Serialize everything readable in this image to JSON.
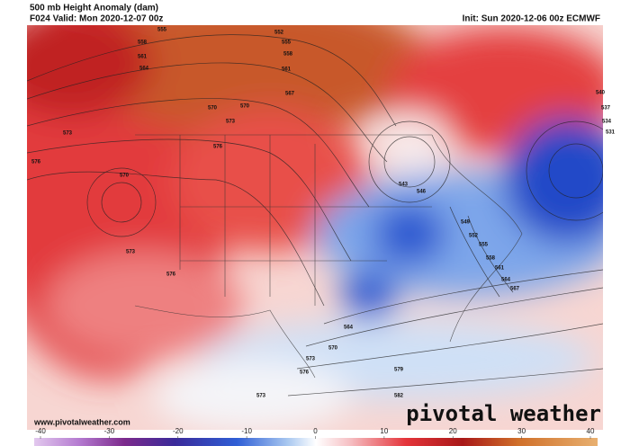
{
  "header": {
    "title": "500 mb Height Anomaly (dam)",
    "valid": "F024 Valid: Mon 2020-12-07 00z",
    "init": "Init: Sun 2020-12-06 00z ECMWF"
  },
  "map": {
    "contour_labels": [
      555,
      552,
      558,
      555,
      558,
      561,
      561,
      564,
      567,
      570,
      570,
      573,
      573,
      576,
      576,
      570,
      573,
      576,
      543,
      546,
      549,
      552,
      555,
      558,
      561,
      564,
      567,
      540,
      537,
      534,
      531,
      564,
      570,
      573,
      576,
      579,
      582,
      573
    ]
  },
  "colorbar": {
    "lim": [
      -40,
      40
    ],
    "ticks": [
      -40,
      -30,
      -20,
      -10,
      0,
      10,
      20,
      30,
      40
    ]
  },
  "footer": {
    "website": "www.pivotalweather.com",
    "logo": "pivotal weather"
  }
}
